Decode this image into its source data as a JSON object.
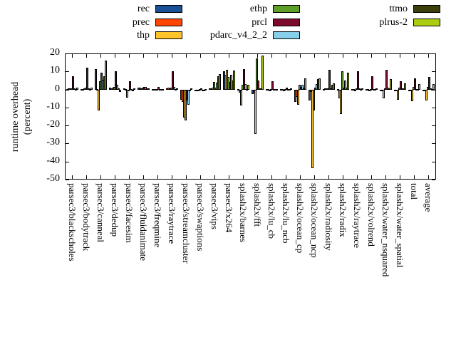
{
  "chart_data": {
    "type": "bar",
    "title": "",
    "ylabel_line1": "runtime overhead",
    "ylabel_line2": "(percent)",
    "ylim": [
      -50,
      20
    ],
    "yticks": [
      20,
      10,
      0,
      -10,
      -20,
      -30,
      -40,
      -50
    ],
    "grid": "off",
    "legend_position": "top-outside, 3 columns",
    "categories": [
      "parsec3/blackscholes",
      "parsec3/bodytrack",
      "parsec3/canneal",
      "parsec3/dedup",
      "parsec3/facesim",
      "parsec3/fluidanimate",
      "parsec3/freqmine",
      "parsec3/raytrace",
      "parsec3/streamcluster",
      "parsec3/swaptions",
      "parsec3/vips",
      "parsec3/x264",
      "splash2x/barnes",
      "splash2x/fft",
      "splash2x/lu_cb",
      "splash2x/lu_ncb",
      "splash2x/ocean_cp",
      "splash2x/ocean_ncp",
      "splash2x/radiosity",
      "splash2x/radix",
      "splash2x/raytrace",
      "splash2x/volrend",
      "splash2x/water_nsquared",
      "splash2x/water_spatial",
      "total",
      "average"
    ],
    "series": [
      {
        "name": "rec",
        "color": "#1a5096",
        "values": [
          0.4,
          0.4,
          11.3,
          1.2,
          0.8,
          1.2,
          0.2,
          0.5,
          -5.7,
          -0.3,
          0.5,
          10.1,
          0.3,
          -2.4,
          0.3,
          0.3,
          -6.9,
          -6.2,
          0.4,
          0.3,
          0.3,
          0.2,
          -0.5,
          -0.3,
          -0.4,
          -0.4
        ]
      },
      {
        "name": "prec",
        "color": "#ff4502",
        "values": [
          0.6,
          0.4,
          0.4,
          0.8,
          0.3,
          1.0,
          0.2,
          1.0,
          -7.0,
          -0.5,
          0.8,
          8.2,
          -1.7,
          -2.0,
          0.2,
          0.3,
          -4.0,
          -1.5,
          0.5,
          -5.0,
          0.3,
          0.2,
          -0.8,
          -0.5,
          -0.5,
          -0.5
        ]
      },
      {
        "name": "thp",
        "color": "#ffc42c",
        "values": [
          0.8,
          0.6,
          -11.5,
          1.0,
          -4.5,
          0.8,
          0.3,
          0.8,
          -15.5,
          -0.3,
          1.0,
          10.8,
          -9.0,
          -24.8,
          -0.3,
          -0.8,
          -8.6,
          -43.7,
          0.8,
          -13.6,
          -0.8,
          -0.3,
          -5.0,
          -5.7,
          -6.6,
          -6.1
        ]
      },
      {
        "name": "ethp",
        "color": "#5da028",
        "values": [
          0.5,
          1.2,
          4.7,
          1.5,
          -1.0,
          1.0,
          0.3,
          1.0,
          -17.0,
          0.3,
          4.0,
          7.0,
          2.5,
          17.4,
          0.3,
          0.4,
          2.6,
          -11.5,
          0.6,
          10.1,
          0.5,
          0.3,
          0.5,
          1.0,
          1.3,
          1.5
        ]
      },
      {
        "name": "prcl",
        "color": "#7c0a2a",
        "values": [
          7.5,
          12.0,
          9.3,
          10.2,
          4.7,
          1.5,
          1.5,
          10.0,
          -6.0,
          0.5,
          1.2,
          4.0,
          11.2,
          4.9,
          4.7,
          1.0,
          1.5,
          1.0,
          10.8,
          1.0,
          10.3,
          7.5,
          10.8,
          4.5,
          6.0,
          6.8
        ]
      },
      {
        "name": "pdarc_v4_2_2",
        "color": "#87ceeb",
        "values": [
          0.6,
          0.8,
          5.5,
          2.5,
          0.4,
          1.3,
          0.3,
          1.5,
          -8.3,
          -0.3,
          3.9,
          8.0,
          2.9,
          0.5,
          0.4,
          0.4,
          2.5,
          2.8,
          0.8,
          4.9,
          0.5,
          0.4,
          1.0,
          0.5,
          0.4,
          0.5
        ]
      },
      {
        "name": "ttmo",
        "color": "#3c3e0c",
        "values": [
          0.3,
          0.4,
          7.3,
          0.5,
          -0.5,
          0.5,
          0.2,
          0.3,
          -1.0,
          -0.2,
          7.3,
          5.0,
          0.4,
          0.5,
          0.2,
          0.3,
          1.0,
          5.9,
          2.5,
          1.0,
          0.3,
          0.3,
          0.5,
          0.5,
          0.4,
          0.4
        ]
      },
      {
        "name": "plrus-2",
        "color": "#aacc11",
        "values": [
          1.0,
          1.0,
          15.9,
          -1.5,
          0.5,
          0.8,
          0.3,
          0.5,
          0.5,
          0.3,
          8.7,
          10.5,
          2.6,
          18.7,
          0.4,
          0.5,
          6.3,
          6.3,
          3.3,
          9.2,
          0.5,
          0.5,
          5.8,
          3.5,
          2.9,
          2.9
        ]
      }
    ],
    "legend_columns": [
      {
        "swatch_x": 218,
        "series": [
          "rec",
          "prec",
          "thp"
        ]
      },
      {
        "swatch_x": 383,
        "series": [
          "ethp",
          "prcl",
          "pdarc_v4_2_2"
        ]
      },
      {
        "swatch_x": 580,
        "series": [
          "ttmo",
          "plrus-2"
        ]
      }
    ]
  }
}
